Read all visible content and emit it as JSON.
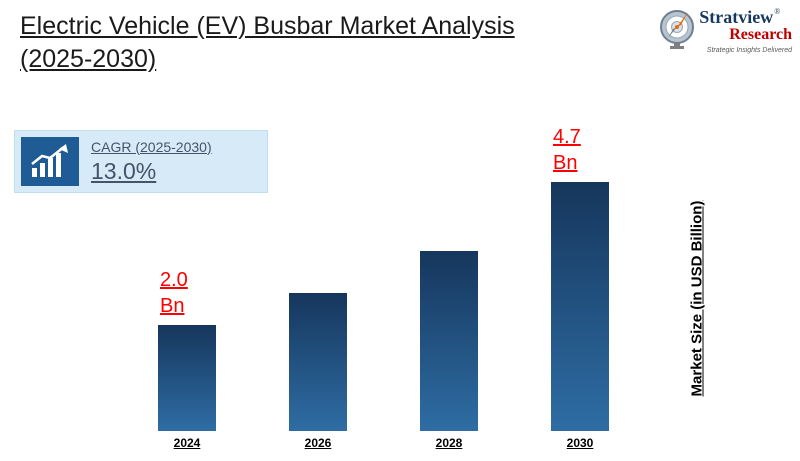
{
  "header": {
    "title_line1": "Electric Vehicle (EV) Busbar Market Analysis",
    "title_line2": "(2025-2030)"
  },
  "logo": {
    "brand1": "Stratview",
    "registered": "®",
    "brand2": "Research",
    "tagline": "Strategic Insights Delivered"
  },
  "cagr": {
    "label": "CAGR (2025-2030)",
    "value": "13.0%"
  },
  "chart_data": {
    "type": "bar",
    "title": "Electric Vehicle (EV) Busbar Market Analysis (2025-2030)",
    "categories": [
      "2024",
      "2026",
      "2028",
      "2030"
    ],
    "values": [
      2.0,
      2.6,
      3.4,
      4.7
    ],
    "bar_labels": [
      "2.0\nBn",
      "",
      "",
      "4.7\nBn"
    ],
    "xlabel": "",
    "ylabel": "Market Size (in  USD Billion)",
    "ylim": [
      0,
      5
    ],
    "grid": false,
    "legend": "none",
    "bar_color_top": "#16365c",
    "bar_color_bottom": "#2e6da4",
    "label_color": "#ff0000"
  },
  "colors": {
    "cagr_box_bg": "#d6ebf7",
    "cagr_icon_bg": "#1f5b94",
    "cagr_text": "#44546a",
    "brand_navy": "#17375e",
    "brand_red": "#c00000"
  }
}
